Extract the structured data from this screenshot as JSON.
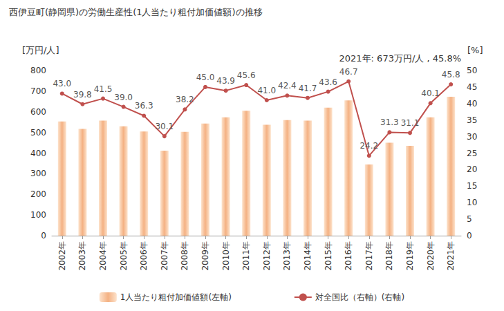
{
  "chart_data": {
    "type": "bar",
    "title": "西伊豆町(静岡県)の労働生産性(1人当たり粗付加価値額)の推移",
    "categories": [
      "2002年",
      "2003年",
      "2004年",
      "2005年",
      "2006年",
      "2007年",
      "2008年",
      "2009年",
      "2010年",
      "2011年",
      "2012年",
      "2013年",
      "2014年",
      "2015年",
      "2016年",
      "2017年",
      "2018年",
      "2019年",
      "2020年",
      "2021年"
    ],
    "series": [
      {
        "name": "1人当たり粗付加価値額(左軸)",
        "type": "bar",
        "color": "#f4b183",
        "values": [
          553,
          517,
          557,
          530,
          505,
          412,
          503,
          543,
          573,
          605,
          537,
          560,
          557,
          620,
          655,
          345,
          450,
          435,
          573,
          673
        ]
      },
      {
        "name": "対全国比（右軸）(右軸)",
        "type": "line",
        "axis": "y2",
        "color": "#c0504d",
        "marker": "circle",
        "data_labels": true,
        "values": [
          43.0,
          39.8,
          41.5,
          39.0,
          36.3,
          30.1,
          38.2,
          45.0,
          43.9,
          45.6,
          41.0,
          42.4,
          41.7,
          43.6,
          46.7,
          24.2,
          31.3,
          31.1,
          40.1,
          45.8
        ],
        "value_labels": [
          "43.0",
          "39.8",
          "41.5",
          "39.0",
          "36.3",
          "30.1",
          "38.2",
          "45.0",
          "43.9",
          "45.6",
          "41.0",
          "42.4",
          "41.7",
          "43.6",
          "46.7",
          "24.2",
          "31.3",
          "31.1",
          "40.1",
          "45.8"
        ]
      }
    ],
    "ylim": [
      0,
      800
    ],
    "yticks": [
      0,
      100,
      200,
      300,
      400,
      500,
      600,
      700,
      800
    ],
    "y2lim": [
      0,
      50
    ],
    "y2ticks": [
      0,
      5,
      10,
      15,
      20,
      25,
      30,
      35,
      40,
      45,
      50
    ],
    "y_label": "[万円/人]",
    "y2_label": "[%]",
    "annotation": "2021年: 673万円/人 , 45.8%",
    "legend": "bottom",
    "grid": false
  }
}
